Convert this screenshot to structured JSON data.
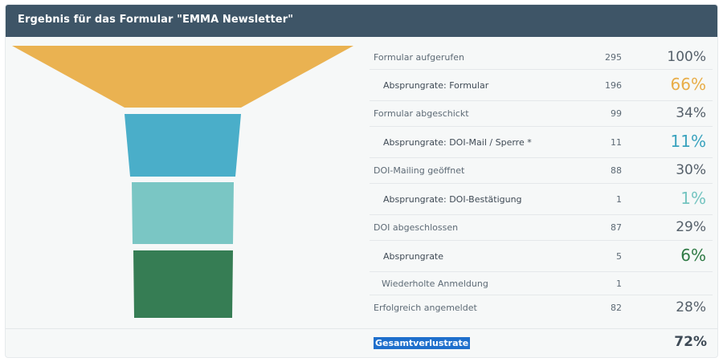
{
  "header": {
    "title": "Ergebnis für das Formular \"EMMA Newsletter\""
  },
  "colors": {
    "header_bg": "#3e5567",
    "stage1": "#eab251",
    "stage2": "#4aaec9",
    "stage3": "#7ac6c4",
    "stage4": "#367d54",
    "bounce1": "#e8ad48",
    "bounce2": "#3aa3be",
    "bounce3": "#74c4c0",
    "bounce4": "#2f7a45",
    "selection": "#1f6fcc"
  },
  "funnel": {
    "stages": [
      {
        "name": "funnel-stage-formular-aufgerufen",
        "color": "#eab251"
      },
      {
        "name": "funnel-stage-formular-abgeschickt",
        "color": "#4aaec9"
      },
      {
        "name": "funnel-stage-doi-mailing-geoeffnet",
        "color": "#7ac6c4"
      },
      {
        "name": "funnel-stage-doi-abgeschlossen",
        "color": "#367d54"
      }
    ]
  },
  "rows": [
    {
      "label": "Formular aufgerufen",
      "count": "295",
      "pct": "100%"
    },
    {
      "label": "Absprungrate: Formular",
      "count": "196",
      "pct": "66%"
    },
    {
      "label": "Formular abgeschickt",
      "count": "99",
      "pct": "34%"
    },
    {
      "label": "Absprungrate: DOI-Mail / Sperre *",
      "count": "11",
      "pct": "11%"
    },
    {
      "label": "DOI-Mailing geöffnet",
      "count": "88",
      "pct": "30%"
    },
    {
      "label": "Absprungrate: DOI-Bestätigung",
      "count": "1",
      "pct": "1%"
    },
    {
      "label": "DOI abgeschlossen",
      "count": "87",
      "pct": "29%"
    },
    {
      "label": "Absprungrate",
      "count": "5",
      "pct": "6%"
    },
    {
      "label": "Wiederholte Anmeldung",
      "count": "1",
      "pct": ""
    },
    {
      "label": "Erfolgreich angemeldet",
      "count": "82",
      "pct": "28%"
    }
  ],
  "total": {
    "label": "Gesamtverlustrate",
    "pct": "72%"
  }
}
